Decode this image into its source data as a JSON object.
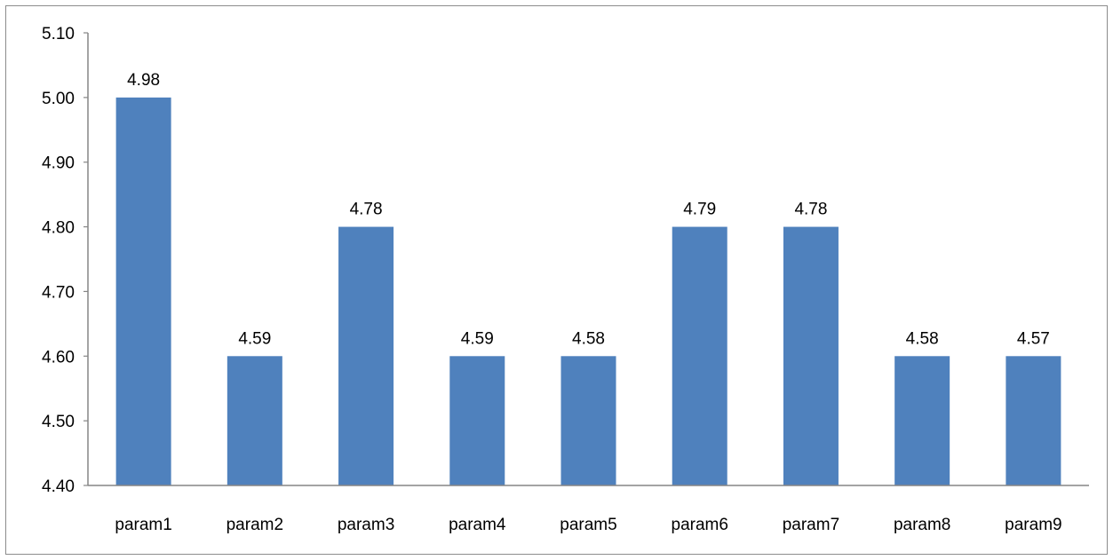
{
  "chart_data": {
    "type": "bar",
    "title": "",
    "xlabel": "",
    "ylabel": "",
    "categories": [
      "param1",
      "param2",
      "param3",
      "param4",
      "param5",
      "param6",
      "param7",
      "param8",
      "param9"
    ],
    "values": [
      5.0,
      4.6,
      4.8,
      4.6,
      4.6,
      4.8,
      4.8,
      4.6,
      4.6
    ],
    "data_labels": [
      "4.98",
      "4.59",
      "4.78",
      "4.59",
      "4.58",
      "4.79",
      "4.78",
      "4.58",
      "4.57"
    ],
    "ylim": [
      4.4,
      5.1
    ],
    "yticks": [
      "4.40",
      "4.50",
      "4.60",
      "4.70",
      "4.80",
      "4.90",
      "5.00",
      "5.10"
    ],
    "grid": false,
    "legend": "none",
    "bar_color": "#4f81bd",
    "axis_color": "#868686"
  }
}
